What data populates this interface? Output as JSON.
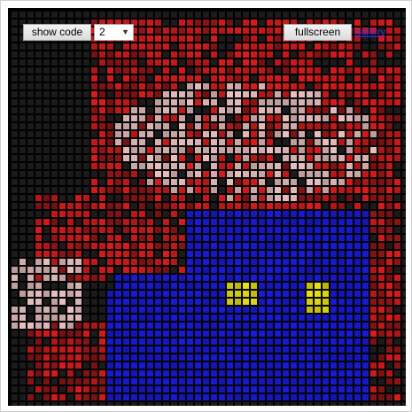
{
  "toolbar": {
    "show_code_label": "show code",
    "select_value": "2",
    "fullscreen_label": "fullscreen",
    "gallery_label": "gallery"
  },
  "canvas": {
    "description_colors": {
      "background": "#000000",
      "red": "#d81b1b",
      "dark_red": "#8e1515",
      "pink": "#e8c0c0",
      "blue": "#1a1ad8",
      "yellow": "#e8e21a"
    }
  }
}
